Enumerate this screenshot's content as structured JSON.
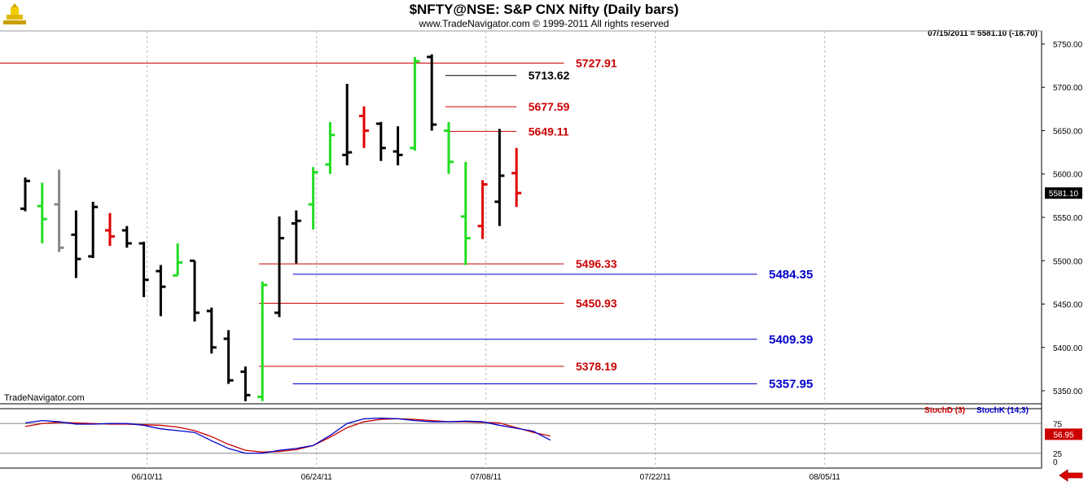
{
  "header": {
    "title": "$NFTY@NSE:  S&P CNX Nifty  (Daily bars)",
    "copyright": "www.TradeNavigator.com © 1999-2011 All rights reserved",
    "last_quote": "07/15/2011 = 5581.10 (-18.70)"
  },
  "watermark": "TradeNavigator.com",
  "last_price_label": "5581.10",
  "colors": {
    "bar_up": "#000000",
    "bar_red": "#e00000",
    "bar_green": "#22dd22",
    "bar_gray": "#888888",
    "red_level": "#cc0000",
    "blue_level": "#0000cc",
    "stoch_d": "#cc0000",
    "stoch_k": "#0000cc",
    "grid": "#bbbbbb"
  },
  "chart_data": [
    {
      "type": "ohlc",
      "y_ticks": [
        5350,
        5400,
        5450,
        5500,
        5550,
        5600,
        5650,
        5700,
        5750
      ],
      "y_tick_labels": [
        "5350.00",
        "5400.00",
        "5450.00",
        "5500.00",
        "5550.00",
        "5600.00",
        "5650.00",
        "5700.00",
        "5750.00"
      ],
      "ylim": [
        5335,
        5765
      ],
      "x_labels": [
        "06/10/11",
        "06/24/11",
        "07/08/11",
        "07/22/11",
        "08/05/11"
      ],
      "x_label_bars": [
        7.2,
        17.2,
        27.2,
        37.2,
        47.2
      ],
      "bars": [
        {
          "o": 5560,
          "h": 5596,
          "l": 5557,
          "c": 5592,
          "color": "black"
        },
        {
          "o": 5563,
          "h": 5590,
          "l": 5520,
          "c": 5548,
          "color": "green"
        },
        {
          "o": 5565,
          "h": 5605,
          "l": 5510,
          "c": 5515,
          "color": "gray"
        },
        {
          "o": 5530,
          "h": 5558,
          "l": 5480,
          "c": 5502,
          "color": "black"
        },
        {
          "o": 5505,
          "h": 5568,
          "l": 5503,
          "c": 5562,
          "color": "black"
        },
        {
          "o": 5535,
          "h": 5555,
          "l": 5517,
          "c": 5528,
          "color": "red"
        },
        {
          "o": 5535,
          "h": 5540,
          "l": 5515,
          "c": 5520,
          "color": "black"
        },
        {
          "o": 5520,
          "h": 5522,
          "l": 5458,
          "c": 5478,
          "color": "black"
        },
        {
          "o": 5488,
          "h": 5495,
          "l": 5436,
          "c": 5470,
          "color": "black"
        },
        {
          "o": 5483,
          "h": 5520,
          "l": 5483,
          "c": 5498,
          "color": "green"
        },
        {
          "o": 5500,
          "h": 5500,
          "l": 5430,
          "c": 5440,
          "color": "black"
        },
        {
          "o": 5442,
          "h": 5446,
          "l": 5393,
          "c": 5400,
          "color": "black"
        },
        {
          "o": 5410,
          "h": 5420,
          "l": 5358,
          "c": 5362,
          "color": "black"
        },
        {
          "o": 5372,
          "h": 5378,
          "l": 5338,
          "c": 5345,
          "color": "black"
        },
        {
          "o": 5343,
          "h": 5476,
          "l": 5338,
          "c": 5472,
          "color": "green"
        },
        {
          "o": 5440,
          "h": 5551,
          "l": 5435,
          "c": 5526,
          "color": "black"
        },
        {
          "o": 5543,
          "h": 5558,
          "l": 5497,
          "c": 5546,
          "color": "black"
        },
        {
          "o": 5565,
          "h": 5608,
          "l": 5536,
          "c": 5602,
          "color": "green"
        },
        {
          "o": 5611,
          "h": 5660,
          "l": 5600,
          "c": 5645,
          "color": "green"
        },
        {
          "o": 5622,
          "h": 5704,
          "l": 5610,
          "c": 5625,
          "color": "black"
        },
        {
          "o": 5667,
          "h": 5678,
          "l": 5630,
          "c": 5650,
          "color": "red"
        },
        {
          "o": 5658,
          "h": 5660,
          "l": 5615,
          "c": 5630,
          "color": "black"
        },
        {
          "o": 5626,
          "h": 5655,
          "l": 5610,
          "c": 5622,
          "color": "black"
        },
        {
          "o": 5630,
          "h": 5735,
          "l": 5627,
          "c": 5730,
          "color": "green"
        },
        {
          "o": 5735,
          "h": 5738,
          "l": 5650,
          "c": 5657,
          "color": "black"
        },
        {
          "o": 5650,
          "h": 5660,
          "l": 5600,
          "c": 5614,
          "color": "green"
        },
        {
          "o": 5551,
          "h": 5614,
          "l": 5495,
          "c": 5526,
          "color": "green"
        },
        {
          "o": 5540,
          "h": 5593,
          "l": 5525,
          "c": 5588,
          "color": "red"
        },
        {
          "o": 5568,
          "h": 5652,
          "l": 5540,
          "c": 5598,
          "color": "black"
        },
        {
          "o": 5601,
          "h": 5630,
          "l": 5562,
          "c": 5578,
          "color": "red"
        }
      ],
      "levels": [
        {
          "value": 5727.91,
          "label": "5727.91",
          "color": "red",
          "from_bar": -2,
          "to_bar": 31.8,
          "label_bar": 32.5
        },
        {
          "value": 5713.62,
          "label": "5713.62",
          "color": "black",
          "from_bar": 24.8,
          "to_bar": 29.0,
          "label_bar": 29.7
        },
        {
          "value": 5677.59,
          "label": "5677.59",
          "color": "red",
          "from_bar": 24.8,
          "to_bar": 29.0,
          "label_bar": 29.7
        },
        {
          "value": 5649.11,
          "label": "5649.11",
          "color": "red",
          "from_bar": 24.8,
          "to_bar": 29.0,
          "label_bar": 29.7
        },
        {
          "value": 5496.33,
          "label": "5496.33",
          "color": "red",
          "from_bar": 13.8,
          "to_bar": 31.8,
          "label_bar": 32.5
        },
        {
          "value": 5484.35,
          "label": "5484.35",
          "color": "blue",
          "from_bar": 15.8,
          "to_bar": 43.2,
          "label_bar": 43.9
        },
        {
          "value": 5450.93,
          "label": "5450.93",
          "color": "red",
          "from_bar": 13.8,
          "to_bar": 31.8,
          "label_bar": 32.5
        },
        {
          "value": 5409.39,
          "label": "5409.39",
          "color": "blue",
          "from_bar": 15.8,
          "to_bar": 43.2,
          "label_bar": 43.9
        },
        {
          "value": 5378.19,
          "label": "5378.19",
          "color": "red",
          "from_bar": 13.8,
          "to_bar": 31.8,
          "label_bar": 32.5
        },
        {
          "value": 5357.95,
          "label": "5357.95",
          "color": "blue",
          "from_bar": 15.8,
          "to_bar": 43.2,
          "label_bar": 43.9
        }
      ]
    },
    {
      "type": "line",
      "ylim": [
        0,
        100
      ],
      "y_ticks": [
        25,
        75
      ],
      "y_tick_labels": [
        "25",
        "75"
      ],
      "extra_label": "0",
      "current_value_label": "56.95",
      "legend": [
        {
          "name": "StochD (3)",
          "color": "red"
        },
        {
          "name": "StochK (14,3)",
          "color": "blue"
        }
      ],
      "series": [
        {
          "name": "StochD (3)",
          "color": "red",
          "values": [
            70,
            75,
            77,
            76,
            75,
            74,
            74,
            73,
            72,
            69,
            63,
            53,
            40,
            30,
            27,
            28,
            31,
            38,
            52,
            68,
            78,
            82,
            83,
            82,
            80,
            78,
            78,
            77,
            76,
            68,
            60,
            54
          ]
        },
        {
          "name": "StochK (14,3)",
          "color": "blue",
          "values": [
            76,
            80,
            78,
            74,
            74,
            75,
            75,
            72,
            66,
            63,
            60,
            46,
            33,
            25,
            25,
            30,
            33,
            38,
            55,
            75,
            83,
            84,
            83,
            80,
            78,
            78,
            79,
            78,
            72,
            67,
            62,
            47
          ]
        }
      ]
    }
  ]
}
